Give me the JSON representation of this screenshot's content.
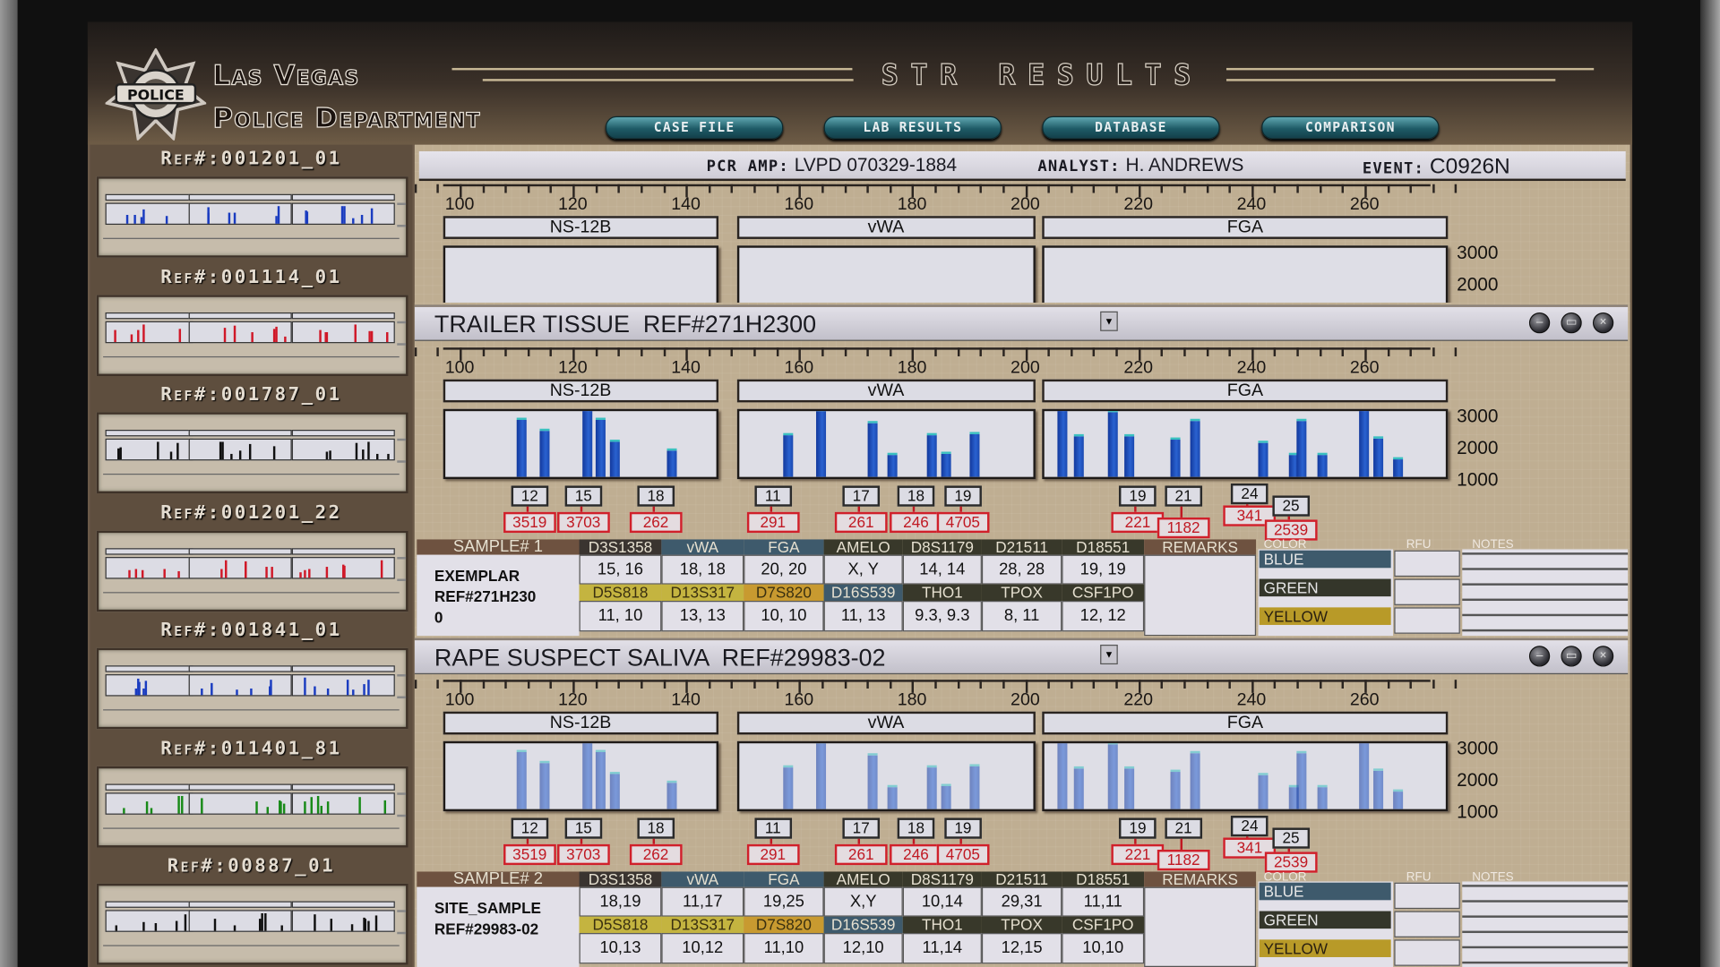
{
  "header": {
    "badge_text": "POLICE",
    "title_line1": "Las Vegas",
    "title_line2": "Police Department",
    "app_title": "STR RESULTS"
  },
  "nav": [
    {
      "label": "CASE FILE"
    },
    {
      "label": "LAB RESULTS"
    },
    {
      "label": "DATABASE"
    },
    {
      "label": "COMPARISON"
    }
  ],
  "sidebar": {
    "items": [
      {
        "ref": "Ref#:001201_01",
        "color": "#1a3cc0"
      },
      {
        "ref": "Ref#:001114_01",
        "color": "#d01828"
      },
      {
        "ref": "Ref#:001787_01",
        "color": "#101010"
      },
      {
        "ref": "Ref#:001201_22",
        "color": "#d01828"
      },
      {
        "ref": "Ref#:001841_01",
        "color": "#1a3cc0"
      },
      {
        "ref": "Ref#:011401_81",
        "color": "#188a18"
      },
      {
        "ref": "Ref#:00887_01",
        "color": "#101010"
      }
    ]
  },
  "info_bar": {
    "pcr_label": "PCR AMP:",
    "pcr_value": "LVPD 070329-1884",
    "analyst_label": "ANALYST:",
    "analyst_value": "H. ANDREWS",
    "event_label": "EVENT:",
    "event_value": "C0926N"
  },
  "windows": [
    {
      "title": "TRAILER TISSUE  REF#271H2300",
      "table": {
        "sample_header": "SAMPLE# 1",
        "sample_lines": [
          "EXEMPLAR",
          "REF#271H230",
          "0"
        ],
        "loci_row1": [
          "D3S1358",
          "vWA",
          "FGA",
          "AMELO",
          "D8S1179",
          "D21511",
          "D18551"
        ],
        "values_row1": [
          "15, 16",
          "18, 18",
          "20, 20",
          "X, Y",
          "14, 14",
          "28, 28",
          "19, 19"
        ],
        "loci_row2": [
          "D5S818",
          "D13S317",
          "D7S820",
          "D16S539",
          "THO1",
          "TPOX",
          "CSF1PO"
        ],
        "values_row2": [
          "11, 10",
          "13, 13",
          "10, 10",
          "11, 13",
          "9.3, 9.3",
          "8, 11",
          "12, 12"
        ],
        "remarks_header": "REMARKS",
        "color_header": "COLOR",
        "rfu_header": "RFU",
        "notes_header": "NOTES",
        "colors": [
          "BLUE",
          "GREEN",
          "YELLOW"
        ]
      }
    },
    {
      "title": "RAPE SUSPECT SALIVA  REF#29983-02",
      "table": {
        "sample_header": "SAMPLE# 2",
        "sample_lines": [
          "SITE_SAMPLE",
          "REF#29983-02"
        ],
        "loci_row1": [
          "D3S1358",
          "vWA",
          "FGA",
          "AMELO",
          "D8S1179",
          "D21511",
          "D18551"
        ],
        "values_row1": [
          "18,19",
          "11,17",
          "19,25",
          "X,Y",
          "10,14",
          "29,31",
          "11,11"
        ],
        "loci_row2": [
          "D5S818",
          "D13S317",
          "D7S820",
          "D16S539",
          "THO1",
          "TPOX",
          "CSF1PO"
        ],
        "values_row2": [
          "10,13",
          "10,12",
          "11,10",
          "12,10",
          "11,14",
          "12,15",
          "10,10"
        ],
        "remarks_header": "REMARKS",
        "color_header": "COLOR",
        "rfu_header": "RFU",
        "notes_header": "NOTES",
        "colors": [
          "BLUE",
          "GREEN",
          "YELLOW"
        ]
      }
    }
  ],
  "table_colors": {
    "sample": "#6e5240",
    "d3s": "#3a3430",
    "blue_hdr": "#3e5a6c",
    "olive": "#38382a",
    "yellow": "#c4b440",
    "orange": "#c89a30",
    "remarks": "#6e5240",
    "color_blue": "#3e5a6c",
    "color_green": "#34362a",
    "color_yellow": "#b89a28"
  },
  "chart_data": [
    {
      "type": "bar",
      "panel": "reference (top)",
      "x_ticks": [
        100,
        120,
        140,
        160,
        180,
        200,
        220,
        240,
        260
      ],
      "y_ticks": [
        3000,
        2000
      ],
      "loci": [
        {
          "name": "NS-12B",
          "range": [
            97,
            145
          ]
        },
        {
          "name": "vWA",
          "range": [
            149,
            201
          ]
        },
        {
          "name": "FGA",
          "range": [
            203,
            274
          ]
        }
      ],
      "peaks": [],
      "alleles": []
    },
    {
      "type": "bar",
      "panel": "TRAILER TISSUE",
      "x_ticks": [
        100,
        120,
        140,
        160,
        180,
        200,
        220,
        240,
        260
      ],
      "y_ticks": [
        3000,
        2000,
        1000
      ],
      "ylim": [
        1000,
        3200
      ],
      "loci": [
        {
          "name": "NS-12B",
          "range": [
            97,
            145
          ]
        },
        {
          "name": "vWA",
          "range": [
            149,
            201
          ]
        },
        {
          "name": "FGA",
          "range": [
            203,
            274
          ]
        }
      ],
      "peaks": [
        {
          "bp": 111,
          "rfu": 2780
        },
        {
          "bp": 115,
          "rfu": 2450
        },
        {
          "bp": 122.5,
          "rfu": 3130
        },
        {
          "bp": 125,
          "rfu": 2780
        },
        {
          "bp": 127.5,
          "rfu": 2100
        },
        {
          "bp": 137.5,
          "rfu": 1810
        },
        {
          "bp": 158,
          "rfu": 2300
        },
        {
          "bp": 164,
          "rfu": 3050
        },
        {
          "bp": 173,
          "rfu": 2690
        },
        {
          "bp": 176.5,
          "rfu": 1700
        },
        {
          "bp": 183.5,
          "rfu": 2320
        },
        {
          "bp": 186,
          "rfu": 1730
        },
        {
          "bp": 191,
          "rfu": 2340
        },
        {
          "bp": 206.5,
          "rfu": 3180
        },
        {
          "bp": 209.5,
          "rfu": 2280
        },
        {
          "bp": 215.5,
          "rfu": 3020
        },
        {
          "bp": 218.5,
          "rfu": 2280
        },
        {
          "bp": 226.5,
          "rfu": 2170
        },
        {
          "bp": 230,
          "rfu": 2740
        },
        {
          "bp": 242,
          "rfu": 2080
        },
        {
          "bp": 247.5,
          "rfu": 1680
        },
        {
          "bp": 248.8,
          "rfu": 2740
        },
        {
          "bp": 252.5,
          "rfu": 1680
        },
        {
          "bp": 260,
          "rfu": 3090
        },
        {
          "bp": 262.5,
          "rfu": 2210
        },
        {
          "bp": 266,
          "rfu": 1550
        }
      ],
      "alleles": [
        {
          "allele": "12",
          "rfu": "3519",
          "bp": 112
        },
        {
          "allele": "15",
          "rfu": "3703",
          "bp": 121.5
        },
        {
          "allele": "18",
          "rfu": "262",
          "bp": 134.3
        },
        {
          "allele": "11",
          "rfu": "291",
          "bp": 155
        },
        {
          "allele": "17",
          "rfu": "261",
          "bp": 170.6
        },
        {
          "allele": "18",
          "rfu": "246",
          "bp": 180.3
        },
        {
          "allele": "19",
          "rfu": "4705",
          "bp": 188.6
        },
        {
          "allele": "19",
          "rfu": "221",
          "bp": 219.5
        },
        {
          "allele": "21",
          "rfu": "1182",
          "bp": 227.6
        },
        {
          "allele": "24",
          "rfu": "341",
          "bp": 239.3
        },
        {
          "allele": "25",
          "rfu": "2539",
          "bp": 246.6
        }
      ]
    },
    {
      "type": "bar",
      "panel": "RAPE SUSPECT SALIVA",
      "x_ticks": [
        100,
        120,
        140,
        160,
        180,
        200,
        220,
        240,
        260
      ],
      "y_ticks": [
        3000,
        2000,
        1000
      ],
      "ylim": [
        1000,
        3200
      ],
      "loci": [
        {
          "name": "NS-12B",
          "range": [
            97,
            145
          ]
        },
        {
          "name": "vWA",
          "range": [
            149,
            201
          ]
        },
        {
          "name": "FGA",
          "range": [
            203,
            274
          ]
        }
      ],
      "peaks": [
        {
          "bp": 111,
          "rfu": 2780
        },
        {
          "bp": 115,
          "rfu": 2450
        },
        {
          "bp": 122.5,
          "rfu": 3130
        },
        {
          "bp": 125,
          "rfu": 2780
        },
        {
          "bp": 127.5,
          "rfu": 2100
        },
        {
          "bp": 137.5,
          "rfu": 1810
        },
        {
          "bp": 158,
          "rfu": 2300
        },
        {
          "bp": 164,
          "rfu": 3050
        },
        {
          "bp": 173,
          "rfu": 2690
        },
        {
          "bp": 176.5,
          "rfu": 1700
        },
        {
          "bp": 183.5,
          "rfu": 2320
        },
        {
          "bp": 186,
          "rfu": 1730
        },
        {
          "bp": 191,
          "rfu": 2340
        },
        {
          "bp": 206.5,
          "rfu": 3180
        },
        {
          "bp": 209.5,
          "rfu": 2280
        },
        {
          "bp": 215.5,
          "rfu": 3020
        },
        {
          "bp": 218.5,
          "rfu": 2280
        },
        {
          "bp": 226.5,
          "rfu": 2170
        },
        {
          "bp": 230,
          "rfu": 2740
        },
        {
          "bp": 242,
          "rfu": 2080
        },
        {
          "bp": 247.5,
          "rfu": 1680
        },
        {
          "bp": 248.8,
          "rfu": 2740
        },
        {
          "bp": 252.5,
          "rfu": 1680
        },
        {
          "bp": 260,
          "rfu": 3090
        },
        {
          "bp": 262.5,
          "rfu": 2210
        },
        {
          "bp": 266,
          "rfu": 1550
        }
      ],
      "alleles": [
        {
          "allele": "12",
          "rfu": "3519",
          "bp": 112
        },
        {
          "allele": "15",
          "rfu": "3703",
          "bp": 121.5
        },
        {
          "allele": "18",
          "rfu": "262",
          "bp": 134.3
        },
        {
          "allele": "11",
          "rfu": "291",
          "bp": 155
        },
        {
          "allele": "17",
          "rfu": "261",
          "bp": 170.6
        },
        {
          "allele": "18",
          "rfu": "246",
          "bp": 180.3
        },
        {
          "allele": "19",
          "rfu": "4705",
          "bp": 188.6
        },
        {
          "allele": "19",
          "rfu": "221",
          "bp": 219.5
        },
        {
          "allele": "21",
          "rfu": "1182",
          "bp": 227.6
        },
        {
          "allele": "24",
          "rfu": "341",
          "bp": 239.3
        },
        {
          "allele": "25",
          "rfu": "2539",
          "bp": 246.6
        }
      ]
    }
  ]
}
